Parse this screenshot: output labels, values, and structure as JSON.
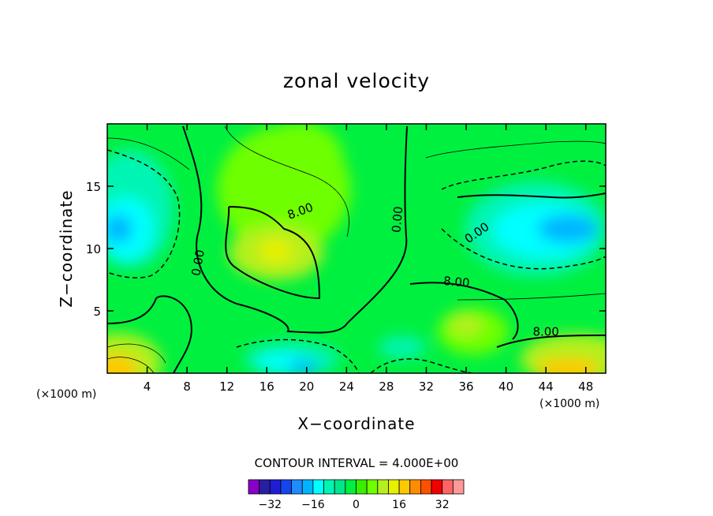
{
  "chart_data": {
    "type": "heatmap",
    "title": "zonal velocity",
    "xlabel": "X−coordinate",
    "ylabel": "Z−coordinate",
    "x_unit": "(×1000 m)",
    "xlim": [
      0,
      50
    ],
    "ylim": [
      0,
      20
    ],
    "x_ticks": [
      4,
      8,
      12,
      16,
      20,
      24,
      28,
      32,
      36,
      40,
      44,
      48
    ],
    "y_ticks": [
      5,
      10,
      15
    ],
    "contour_interval_text": "CONTOUR INTERVAL = 4.000E+00",
    "contour_labels": [
      "8.00",
      "0.00",
      "0.00",
      "8.00",
      "0.00",
      "8.00"
    ],
    "colorbar": {
      "levels": [
        -36,
        -32,
        -28,
        -24,
        -20,
        -16,
        -12,
        -8,
        -4,
        0,
        4,
        8,
        12,
        16,
        20,
        24,
        28,
        32,
        36
      ],
      "colors": [
        "#8a00c8",
        "#2a1ea0",
        "#1e1ed2",
        "#1446f0",
        "#1e8cff",
        "#00b4ff",
        "#00ffff",
        "#00f5b4",
        "#00e68c",
        "#00f040",
        "#37f000",
        "#6eff00",
        "#b4f01e",
        "#e6f000",
        "#ffc800",
        "#ff8c00",
        "#ff5000",
        "#f00000",
        "#ff6464",
        "#ff9999"
      ],
      "tick_labels": [
        "−32",
        "−16",
        "0",
        "16",
        "32"
      ],
      "tick_values": [
        -32,
        -16,
        0,
        16,
        32
      ]
    },
    "legend": "bottom"
  }
}
